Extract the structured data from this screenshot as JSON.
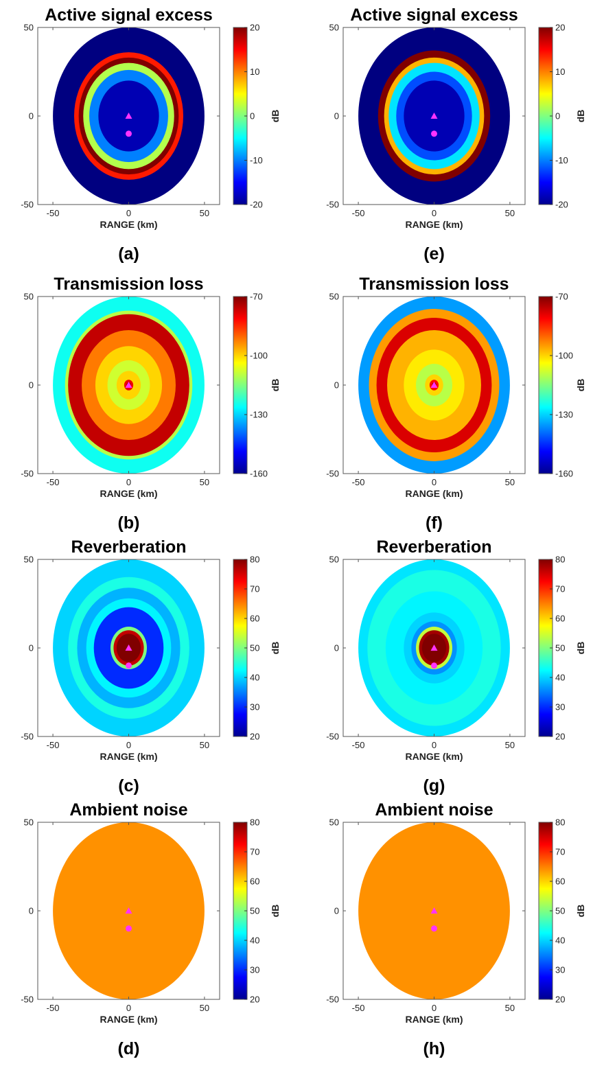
{
  "chart_data": [
    {
      "type": "heatmap",
      "panel": "(a)",
      "title": "Active signal excess",
      "xlabel": "RANGE (km)",
      "colorbar_label": "dB",
      "xlim": [
        -60,
        60
      ],
      "ylim": [
        -50,
        50
      ],
      "xticks": [
        "-50",
        "0",
        "50"
      ],
      "yticks": [
        "50",
        "0",
        "-50"
      ],
      "colorbar_range": [
        -20,
        20
      ],
      "colorbar_ticks": [
        "20",
        "10",
        "0",
        "-10",
        "-20"
      ],
      "colormap": "jet",
      "outside_value": -20,
      "rings": [
        {
          "r": 50,
          "value": -20
        },
        {
          "r": 36,
          "value": 14
        },
        {
          "r": 33,
          "value": 20
        },
        {
          "r": 30,
          "value": 2
        },
        {
          "r": 26,
          "value": -10
        },
        {
          "r": 20,
          "value": -18
        }
      ],
      "markers": [
        {
          "shape": "triangle",
          "x": 0,
          "y": 0,
          "color": "#ff33ff"
        },
        {
          "shape": "circle",
          "x": 0,
          "y": -10,
          "color": "#ff33ff"
        }
      ]
    },
    {
      "type": "heatmap",
      "panel": "(b)",
      "title": "Transmission loss",
      "xlabel": "RANGE (km)",
      "colorbar_label": "dB",
      "xlim": [
        -60,
        60
      ],
      "ylim": [
        -50,
        50
      ],
      "xticks": [
        "-50",
        "0",
        "50"
      ],
      "yticks": [
        "50",
        "0",
        "-50"
      ],
      "colorbar_range": [
        -160,
        -70
      ],
      "colorbar_ticks": [
        "-70",
        "-100",
        "-130",
        "-160"
      ],
      "colormap": "jet",
      "outside_value": null,
      "rings": [
        {
          "r": 50,
          "value": -125
        },
        {
          "r": 42,
          "value": -110
        },
        {
          "r": 40,
          "value": -76
        },
        {
          "r": 31,
          "value": -92
        },
        {
          "r": 22,
          "value": -100
        },
        {
          "r": 14,
          "value": -108
        },
        {
          "r": 8,
          "value": -100
        },
        {
          "r": 3,
          "value": -80
        },
        {
          "r": 1.5,
          "value": -72
        }
      ],
      "markers": [
        {
          "shape": "triangle",
          "x": 0,
          "y": 0,
          "color": "#ff33ff"
        }
      ]
    },
    {
      "type": "heatmap",
      "panel": "(c)",
      "title": "Reverberation",
      "xlabel": "RANGE (km)",
      "colorbar_label": "dB",
      "xlim": [
        -60,
        60
      ],
      "ylim": [
        -50,
        50
      ],
      "xticks": [
        "-50",
        "0",
        "50"
      ],
      "yticks": [
        "50",
        "0",
        "-50"
      ],
      "colorbar_range": [
        20,
        80
      ],
      "colorbar_ticks": [
        "80",
        "70",
        "60",
        "50",
        "40",
        "30",
        "20"
      ],
      "colormap": "jet",
      "outside_value": null,
      "rings": [
        {
          "r": 50,
          "value": 40
        },
        {
          "r": 40,
          "value": 44
        },
        {
          "r": 34,
          "value": 38
        },
        {
          "r": 28,
          "value": 42
        },
        {
          "r": 23,
          "value": 30
        },
        {
          "r": 12,
          "value": 50
        },
        {
          "r": 10,
          "value": 76
        },
        {
          "r": 8,
          "value": 80
        }
      ],
      "markers": [
        {
          "shape": "triangle",
          "x": 0,
          "y": 0,
          "color": "#ff33ff"
        },
        {
          "shape": "circle",
          "x": 0,
          "y": -10,
          "color": "#ff33ff"
        }
      ]
    },
    {
      "type": "heatmap",
      "panel": "(d)",
      "title": "Ambient noise",
      "xlabel": "RANGE (km)",
      "colorbar_label": "dB",
      "xlim": [
        -60,
        60
      ],
      "ylim": [
        -50,
        50
      ],
      "xticks": [
        "-50",
        "0",
        "50"
      ],
      "yticks": [
        "50",
        "0",
        "-50"
      ],
      "colorbar_range": [
        20,
        80
      ],
      "colorbar_ticks": [
        "80",
        "70",
        "60",
        "50",
        "40",
        "30",
        "20"
      ],
      "colormap": "jet",
      "outside_value": null,
      "rings": [
        {
          "r": 50,
          "value": 64
        }
      ],
      "markers": [
        {
          "shape": "triangle",
          "x": 0,
          "y": 0,
          "color": "#ff33ff"
        },
        {
          "shape": "circle",
          "x": 0,
          "y": -10,
          "color": "#ff33ff"
        }
      ]
    },
    {
      "type": "heatmap",
      "panel": "(e)",
      "title": "Active signal excess",
      "xlabel": "RANGE (km)",
      "colorbar_label": "dB",
      "xlim": [
        -60,
        60
      ],
      "ylim": [
        -50,
        50
      ],
      "xticks": [
        "-50",
        "0",
        "50"
      ],
      "yticks": [
        "50",
        "0",
        "-50"
      ],
      "colorbar_range": [
        -20,
        20
      ],
      "colorbar_ticks": [
        "20",
        "10",
        "0",
        "-10",
        "-20"
      ],
      "colormap": "jet",
      "outside_value": -20,
      "rings": [
        {
          "r": 50,
          "value": -20
        },
        {
          "r": 37,
          "value": 20
        },
        {
          "r": 33,
          "value": 8
        },
        {
          "r": 30,
          "value": -6
        },
        {
          "r": 25,
          "value": -12
        },
        {
          "r": 20,
          "value": -18
        }
      ],
      "markers": [
        {
          "shape": "triangle",
          "x": 0,
          "y": 0,
          "color": "#ff33ff"
        },
        {
          "shape": "circle",
          "x": 0,
          "y": -10,
          "color": "#ff33ff"
        }
      ]
    },
    {
      "type": "heatmap",
      "panel": "(f)",
      "title": "Transmission loss",
      "xlabel": "RANGE (km)",
      "colorbar_label": "dB",
      "xlim": [
        -60,
        60
      ],
      "ylim": [
        -50,
        50
      ],
      "xticks": [
        "-50",
        "0",
        "50"
      ],
      "yticks": [
        "50",
        "0",
        "-50"
      ],
      "colorbar_range": [
        -160,
        -70
      ],
      "colorbar_ticks": [
        "-70",
        "-100",
        "-130",
        "-160"
      ],
      "colormap": "jet",
      "outside_value": null,
      "rings": [
        {
          "r": 50,
          "value": -135
        },
        {
          "r": 43,
          "value": -95
        },
        {
          "r": 38,
          "value": -78
        },
        {
          "r": 31,
          "value": -97
        },
        {
          "r": 20,
          "value": -102
        },
        {
          "r": 12,
          "value": -110
        },
        {
          "r": 6,
          "value": -100
        },
        {
          "r": 3,
          "value": -82
        },
        {
          "r": 1.5,
          "value": -72
        }
      ],
      "markers": [
        {
          "shape": "triangle",
          "x": 0,
          "y": 0,
          "color": "#ff33ff"
        }
      ]
    },
    {
      "type": "heatmap",
      "panel": "(g)",
      "title": "Reverberation",
      "xlabel": "RANGE (km)",
      "colorbar_label": "dB",
      "xlim": [
        -60,
        60
      ],
      "ylim": [
        -50,
        50
      ],
      "xticks": [
        "-50",
        "0",
        "50"
      ],
      "yticks": [
        "50",
        "0",
        "-50"
      ],
      "colorbar_range": [
        20,
        80
      ],
      "colorbar_ticks": [
        "80",
        "70",
        "60",
        "50",
        "40",
        "30",
        "20"
      ],
      "colormap": "jet",
      "outside_value": null,
      "rings": [
        {
          "r": 50,
          "value": 41
        },
        {
          "r": 44,
          "value": 44
        },
        {
          "r": 32,
          "value": 42
        },
        {
          "r": 20,
          "value": 40
        },
        {
          "r": 15,
          "value": 36
        },
        {
          "r": 12,
          "value": 54
        },
        {
          "r": 10,
          "value": 78
        },
        {
          "r": 8,
          "value": 80
        }
      ],
      "markers": [
        {
          "shape": "triangle",
          "x": 0,
          "y": 0,
          "color": "#ff33ff"
        },
        {
          "shape": "circle",
          "x": 0,
          "y": -10,
          "color": "#ff33ff"
        }
      ]
    },
    {
      "type": "heatmap",
      "panel": "(h)",
      "title": "Ambient noise",
      "xlabel": "RANGE (km)",
      "colorbar_label": "dB",
      "xlim": [
        -60,
        60
      ],
      "ylim": [
        -50,
        50
      ],
      "xticks": [
        "-50",
        "0",
        "50"
      ],
      "yticks": [
        "50",
        "0",
        "-50"
      ],
      "colorbar_range": [
        20,
        80
      ],
      "colorbar_ticks": [
        "80",
        "70",
        "60",
        "50",
        "40",
        "30",
        "20"
      ],
      "colormap": "jet",
      "outside_value": null,
      "rings": [
        {
          "r": 50,
          "value": 64
        }
      ],
      "markers": [
        {
          "shape": "triangle",
          "x": 0,
          "y": 0,
          "color": "#ff33ff"
        },
        {
          "shape": "circle",
          "x": 0,
          "y": -10,
          "color": "#ff33ff"
        }
      ]
    }
  ]
}
